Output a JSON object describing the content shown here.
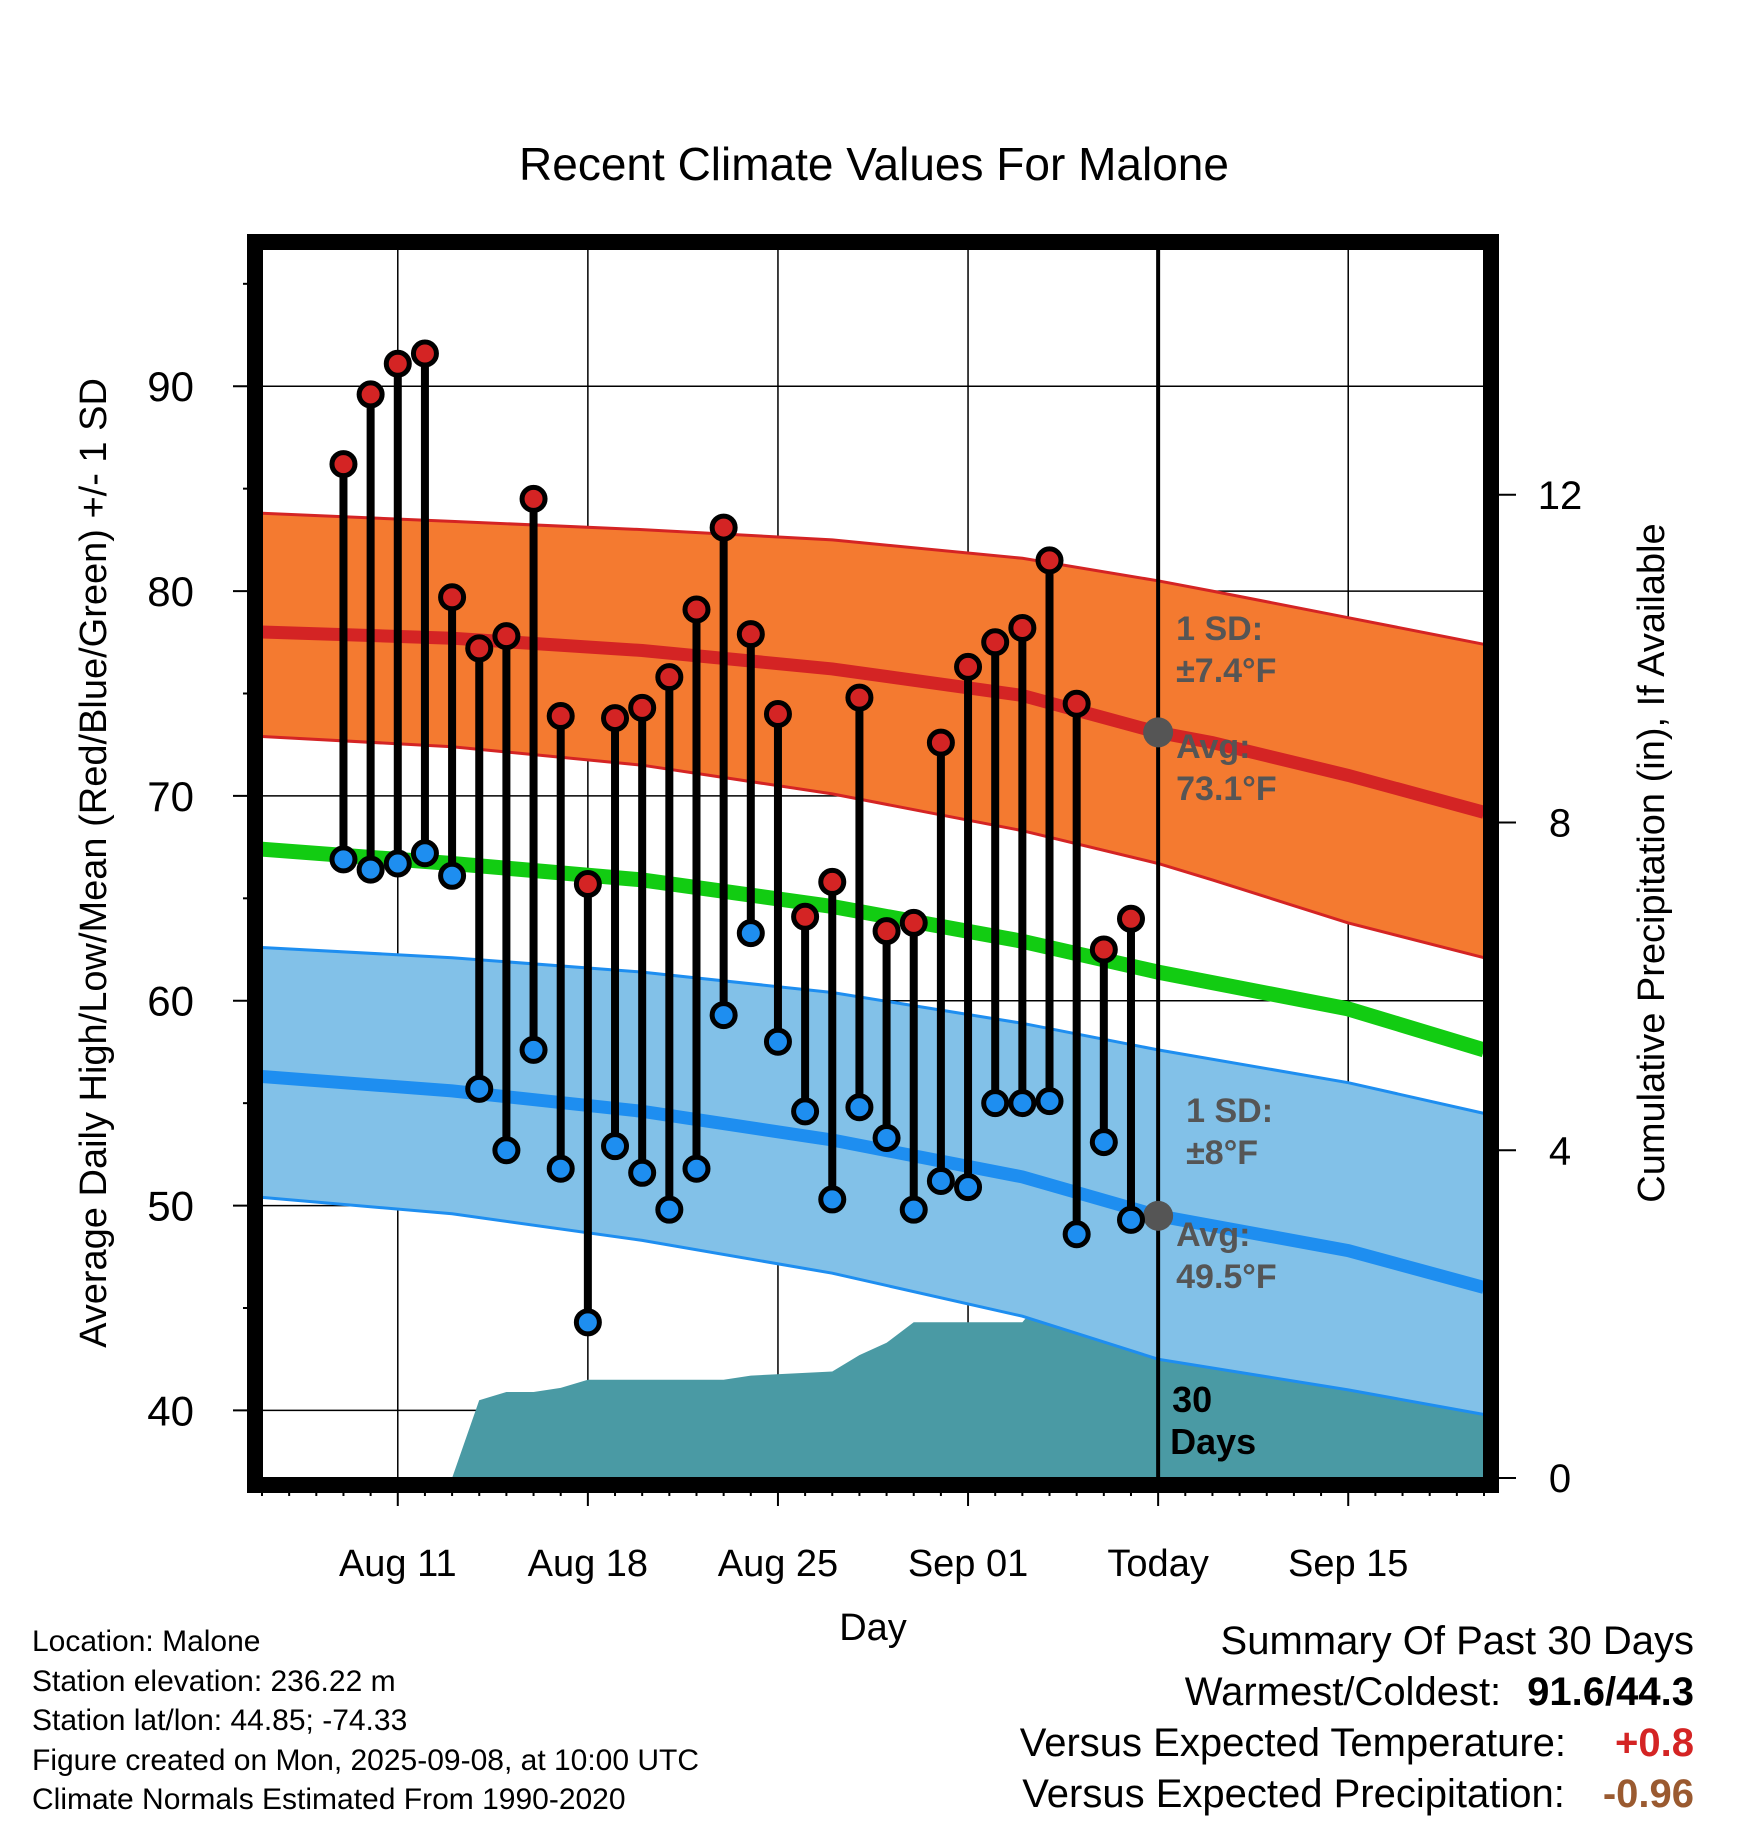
{
  "chart_data": {
    "type": "line",
    "title": "Recent Climate Values For Malone",
    "xlabel": "Day",
    "ylabel": "Average Daily High/Low/Mean (Red/Blue/Green) +/- 1 SD",
    "y2label": "Cumulative Precipitation (in), If Available",
    "x_range": [
      "2025-08-06",
      "2025-09-20"
    ],
    "ylim": [
      36.7,
      96.7
    ],
    "y2lim": [
      0,
      15
    ],
    "y_ticks": [
      40,
      50,
      60,
      70,
      80,
      90
    ],
    "y2_ticks": [
      0,
      4,
      8,
      12
    ],
    "x_ticks": [
      {
        "date": "2025-08-11",
        "label": "Aug 11"
      },
      {
        "date": "2025-08-18",
        "label": "Aug 18"
      },
      {
        "date": "2025-08-25",
        "label": "Aug 25"
      },
      {
        "date": "2025-09-01",
        "label": "Sep 01"
      },
      {
        "date": "2025-09-08",
        "label": "Today"
      },
      {
        "date": "2025-09-15",
        "label": "Sep 15"
      }
    ],
    "grid": true,
    "today": "2025-09-08",
    "daily_obs": {
      "dates": [
        "2025-08-09",
        "2025-08-10",
        "2025-08-11",
        "2025-08-12",
        "2025-08-13",
        "2025-08-14",
        "2025-08-15",
        "2025-08-16",
        "2025-08-17",
        "2025-08-18",
        "2025-08-19",
        "2025-08-20",
        "2025-08-21",
        "2025-08-22",
        "2025-08-23",
        "2025-08-24",
        "2025-08-25",
        "2025-08-26",
        "2025-08-27",
        "2025-08-28",
        "2025-08-29",
        "2025-08-30",
        "2025-08-31",
        "2025-09-01",
        "2025-09-02",
        "2025-09-03",
        "2025-09-04",
        "2025-09-05",
        "2025-09-06",
        "2025-09-07"
      ],
      "high": [
        86.2,
        89.6,
        91.1,
        91.6,
        79.7,
        77.2,
        77.8,
        84.5,
        73.9,
        65.7,
        73.8,
        74.3,
        75.8,
        79.1,
        83.1,
        77.9,
        74.0,
        64.1,
        65.8,
        74.8,
        63.4,
        63.8,
        72.6,
        76.3,
        77.5,
        78.2,
        81.5,
        74.5,
        62.5,
        64.0
      ],
      "low": [
        66.9,
        66.4,
        66.7,
        67.2,
        66.1,
        55.7,
        52.7,
        57.6,
        51.8,
        44.3,
        52.9,
        51.6,
        49.8,
        51.8,
        59.3,
        63.3,
        58.0,
        54.6,
        50.3,
        54.8,
        53.3,
        49.8,
        51.2,
        50.9,
        55.0,
        55.0,
        55.1,
        48.6,
        53.1,
        49.3
      ]
    },
    "normal_high": {
      "dates": [
        "2025-08-06",
        "2025-08-13",
        "2025-08-20",
        "2025-08-27",
        "2025-09-03",
        "2025-09-08",
        "2025-09-10",
        "2025-09-15",
        "2025-09-20"
      ],
      "mean": [
        78.0,
        77.7,
        77.1,
        76.2,
        74.9,
        73.1,
        72.6,
        71.0,
        69.2
      ],
      "upper": [
        83.8,
        83.4,
        83.0,
        82.5,
        81.6,
        80.5,
        80.0,
        78.7,
        77.4
      ],
      "lower": [
        72.9,
        72.4,
        71.5,
        70.1,
        68.3,
        66.7,
        65.9,
        63.8,
        62.1
      ]
    },
    "normal_mean": {
      "dates": [
        "2025-08-06",
        "2025-08-13",
        "2025-08-20",
        "2025-08-27",
        "2025-09-03",
        "2025-09-08",
        "2025-09-15",
        "2025-09-20"
      ],
      "values": [
        67.4,
        66.7,
        65.9,
        64.6,
        62.9,
        61.4,
        59.6,
        57.6
      ]
    },
    "normal_low": {
      "dates": [
        "2025-08-06",
        "2025-08-13",
        "2025-08-20",
        "2025-08-27",
        "2025-09-03",
        "2025-09-08",
        "2025-09-15",
        "2025-09-20"
      ],
      "mean": [
        56.3,
        55.6,
        54.6,
        53.2,
        51.4,
        49.5,
        47.8,
        46.0
      ],
      "upper": [
        62.6,
        62.1,
        61.4,
        60.4,
        58.9,
        57.6,
        56.0,
        54.5
      ],
      "lower": [
        50.4,
        49.6,
        48.3,
        46.7,
        44.6,
        42.5,
        41.0,
        39.8
      ]
    },
    "cumulative_precip": {
      "dates": [
        "2025-08-10",
        "2025-08-11",
        "2025-08-12",
        "2025-08-13",
        "2025-08-14",
        "2025-08-15",
        "2025-08-16",
        "2025-08-17",
        "2025-08-18",
        "2025-08-22",
        "2025-08-23",
        "2025-08-24",
        "2025-08-27",
        "2025-08-28",
        "2025-08-29",
        "2025-08-30",
        "2025-08-31",
        "2025-09-03",
        "2025-09-04",
        "2025-09-05",
        "2025-09-06",
        "2025-09-07",
        "2025-09-08",
        "2025-09-20"
      ],
      "values": [
        0,
        0,
        0,
        0.0,
        0.95,
        1.05,
        1.05,
        1.1,
        1.2,
        1.2,
        1.2,
        1.25,
        1.3,
        1.5,
        1.65,
        1.9,
        1.9,
        1.9,
        2.3,
        2.5,
        2.7,
        2.72,
        2.75,
        2.75
      ]
    },
    "annotations": {
      "high_sd_label": "1 SD:",
      "high_sd_value": "±7.4°F",
      "high_avg_label": "Avg:",
      "high_avg_value": "73.1°F",
      "low_sd_label": "1 SD:",
      "low_sd_value": "±8°F",
      "low_avg_label": "Avg:",
      "low_avg_value": "49.5°F",
      "days_line1": "30",
      "days_line2": "Days"
    },
    "colors": {
      "high_band": "#f47a30",
      "high_line": "#d42424",
      "low_band": "#82c1e8",
      "low_line": "#1e8ef0",
      "mean_line": "#12cc12",
      "precip": "#4a9aa4",
      "annotation": "#555555",
      "high_dot": "#d42424",
      "low_dot": "#1e8ef0"
    }
  },
  "info": {
    "location": "Location: Malone",
    "elevation": "Station elevation: 236.22 m",
    "latlon": "Station lat/lon: 44.85; -74.33",
    "created": "Figure created on Mon, 2025-09-08, at 10:00 UTC",
    "normals": "Climate Normals Estimated From 1990-2020"
  },
  "summary": {
    "title": "Summary Of Past 30 Days",
    "warmest_coldest_label": "Warmest/Coldest:",
    "warmest_coldest_value": "91.6/44.3",
    "temp_label": "Versus Expected Temperature:",
    "temp_value": "+0.8",
    "temp_color": "#d42424",
    "precip_label": "Versus Expected Precipitation:",
    "precip_value": "-0.96",
    "precip_color": "#9a5a30"
  }
}
